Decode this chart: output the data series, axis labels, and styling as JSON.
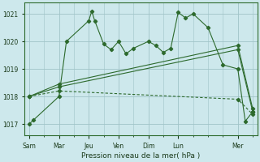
{
  "bg_color": "#cde8ec",
  "grid_color": "#a0c4c8",
  "line_color": "#2d6a2d",
  "title": "Pression niveau de la mer( hPa )",
  "ylim": [
    1016.6,
    1021.4
  ],
  "yticks": [
    1017,
    1018,
    1019,
    1020,
    1021
  ],
  "x_day_labels": [
    "Sam",
    "Mar",
    "Jeu",
    "Ven",
    "Dim",
    "Lun",
    "Mer"
  ],
  "x_day_positions": [
    0,
    2,
    4,
    6,
    8,
    10,
    14
  ],
  "xlim": [
    -0.3,
    15.3
  ],
  "series1_x": [
    0,
    0.3,
    2,
    2.5,
    4.0,
    4.2,
    4.4,
    5.0,
    5.5,
    6.0,
    6.5,
    7.0,
    8.0,
    8.5,
    9.0,
    9.5,
    10.0,
    10.5,
    11.0,
    12.0,
    13.0,
    14.0,
    14.5,
    15.0
  ],
  "series1_y": [
    1017.0,
    1017.15,
    1018.0,
    1020.0,
    1020.75,
    1021.1,
    1020.75,
    1019.9,
    1019.7,
    1020.0,
    1019.55,
    1019.75,
    1020.0,
    1019.85,
    1019.6,
    1019.75,
    1021.05,
    1020.85,
    1021.0,
    1020.5,
    1019.15,
    1019.0,
    1017.1,
    1017.45
  ],
  "series2_x": [
    0,
    2,
    14,
    15
  ],
  "series2_y": [
    1018.0,
    1018.45,
    1019.85,
    1017.55
  ],
  "series3_x": [
    0,
    2,
    14,
    15
  ],
  "series3_y": [
    1018.0,
    1018.35,
    1019.7,
    1017.45
  ],
  "series4_x": [
    0,
    2,
    14,
    15
  ],
  "series4_y": [
    1018.0,
    1018.2,
    1017.9,
    1017.35
  ]
}
